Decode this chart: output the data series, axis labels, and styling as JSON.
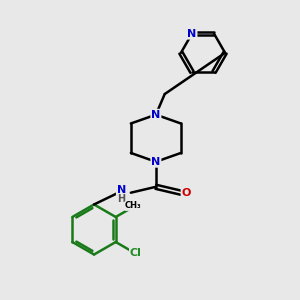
{
  "bg_color": "#e8e8e8",
  "atom_color_N": "#0000cc",
  "atom_color_O": "#cc0000",
  "atom_color_Cl": "#228b22",
  "atom_color_C": "#000000",
  "bond_color_main": "#000000",
  "bond_color_benz": "#1a7a1a",
  "bond_width": 1.8,
  "figsize": [
    3.0,
    3.0
  ],
  "dpi": 100,
  "xlim": [
    0,
    10
  ],
  "ylim": [
    0,
    10
  ]
}
